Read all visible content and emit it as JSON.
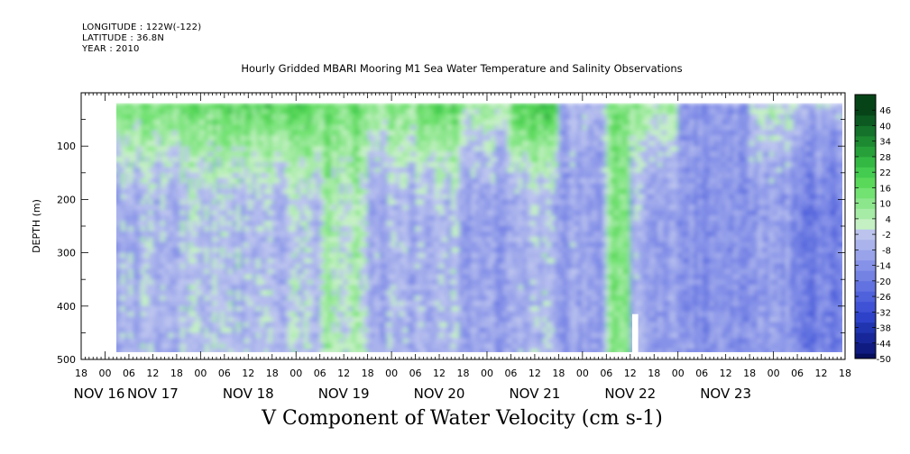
{
  "header": {
    "longitude": "LONGITUDE : 122W(-122)",
    "latitude": "LATITUDE : 36.8N",
    "year": "YEAR : 2010"
  },
  "colors": {
    "negative_scale": [
      "#bcc4ee",
      "#aab3ec",
      "#98a3ea",
      "#8692e8",
      "#7482e4",
      "#6272e0",
      "#5061dc",
      "#3f52d6",
      "#2d42c8",
      "#2034b0",
      "#17279a",
      "#0f1b80",
      "#060f5e"
    ],
    "positive_scale": [
      "#c4f0c4",
      "#a6eba6",
      "#8ce68c",
      "#72e272",
      "#5ad85a",
      "#44cc50",
      "#34b844",
      "#27a03a",
      "#1d8a32",
      "#14722a",
      "#0c5a22",
      "#064418"
    ],
    "gap": "#ffffff"
  },
  "chart_data": {
    "type": "heatmap",
    "title": "Hourly Gridded MBARI Mooring M1 Sea Water Temperature and Salinity Observations",
    "xlabel": "V Component of Water Velocity (cm s-1)",
    "ylabel": "DEPTH (m)",
    "x_range_hours": [
      -6,
      186
    ],
    "data_x_range_hours": [
      0,
      186
    ],
    "ylim": [
      500,
      0
    ],
    "data_depth_range": [
      20,
      490
    ],
    "y_ticks": [
      "100",
      "200",
      "300",
      "400",
      "500"
    ],
    "x_hour_ticks": [
      "18",
      "00",
      "06",
      "12",
      "18",
      "00",
      "06",
      "12",
      "18",
      "00",
      "06",
      "12",
      "18",
      "00",
      "06",
      "12",
      "18",
      "00",
      "06",
      "12",
      "18",
      "00",
      "06",
      "12",
      "18",
      "00",
      "06",
      "12",
      "18",
      "00",
      "06",
      "12",
      "18"
    ],
    "x_date_labels": [
      "NOV 16",
      "NOV 17",
      "NOV 18",
      "NOV 19",
      "NOV 20",
      "NOV 21",
      "NOV 22",
      "NOV 23"
    ],
    "colorbar_labels": [
      "46",
      "40",
      "34",
      "28",
      "22",
      "16",
      "10",
      "4",
      "-2",
      "-8",
      "-14",
      "-20",
      "-26",
      "-32",
      "-38",
      "-44",
      "-50"
    ],
    "colorbar_range": [
      -50,
      52
    ],
    "approx_column_means_cm_s": [
      {
        "hours": [
          0,
          18
        ],
        "surface": 14,
        "deep": -6
      },
      {
        "hours": [
          18,
          30
        ],
        "surface": 18,
        "deep": -2
      },
      {
        "hours": [
          30,
          54
        ],
        "surface": 20,
        "deep": -4
      },
      {
        "hours": [
          54,
          66
        ],
        "surface": 16,
        "deep": 4
      },
      {
        "hours": [
          66,
          78
        ],
        "surface": 10,
        "deep": -8
      },
      {
        "hours": [
          78,
          90
        ],
        "surface": 18,
        "deep": -6
      },
      {
        "hours": [
          90,
          102
        ],
        "surface": 6,
        "deep": -10
      },
      {
        "hours": [
          102,
          114
        ],
        "surface": 24,
        "deep": -6
      },
      {
        "hours": [
          114,
          126
        ],
        "surface": -6,
        "deep": -10
      },
      {
        "hours": [
          126,
          132
        ],
        "surface": 12,
        "deep": 10
      },
      {
        "hours": [
          132,
          144
        ],
        "surface": 8,
        "deep": -8
      },
      {
        "hours": [
          144,
          162
        ],
        "surface": -12,
        "deep": -14
      },
      {
        "hours": [
          162,
          174
        ],
        "surface": 2,
        "deep": -12
      },
      {
        "hours": [
          174,
          186
        ],
        "surface": -4,
        "deep": -18
      }
    ],
    "data_gap": {
      "hours": [
        132.5,
        134
      ],
      "depth": [
        415,
        490
      ]
    }
  }
}
